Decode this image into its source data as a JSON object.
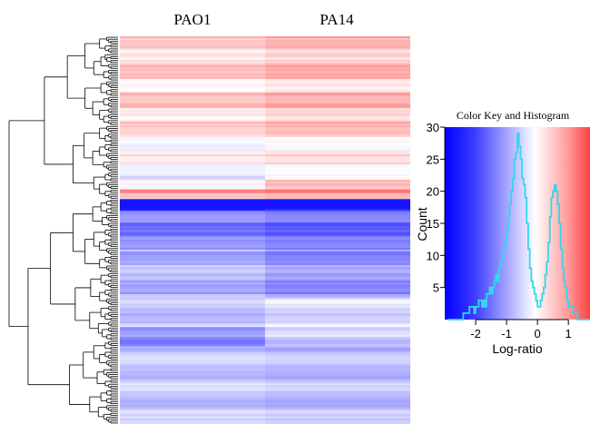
{
  "chart_data": [
    {
      "type": "heatmap",
      "columns": [
        "PAO1",
        "PA14"
      ],
      "row_count": 200,
      "color_scale": {
        "low": "#0000ff",
        "mid": "#ffffff",
        "high": "#ff4040",
        "range": [
          -3,
          1.7
        ]
      },
      "row_blocks": [
        {
          "rows": 52,
          "PAO1": 0.45,
          "PA14": 0.6
        },
        {
          "rows": 20,
          "PAO1": 0.25,
          "PA14": 0.35
        },
        {
          "rows": 7,
          "PAO1": 0.05,
          "PA14": 0.55
        },
        {
          "rows": 5,
          "PAO1": 0.9,
          "PA14": 1.0
        },
        {
          "rows": 6,
          "PAO1": -2.4,
          "PA14": -2.2
        },
        {
          "rows": 20,
          "PAO1": -1.1,
          "PA14": -1.3
        },
        {
          "rows": 25,
          "PAO1": -0.6,
          "PA14": -0.9
        },
        {
          "rows": 15,
          "PAO1": -0.45,
          "PA14": -0.2
        },
        {
          "rows": 10,
          "PAO1": -1.0,
          "PA14": -0.35
        },
        {
          "rows": 40,
          "PAO1": -0.4,
          "PA14": -0.5
        }
      ]
    },
    {
      "type": "histogram",
      "title": "Color Key and Histogram",
      "xlabel": "Log-ratio",
      "ylabel": "Count",
      "xticks": [
        -2,
        -1,
        0,
        1
      ],
      "yticks": [
        5,
        10,
        15,
        20,
        25,
        30
      ],
      "xlim": [
        -3.0,
        1.7
      ],
      "ylim": [
        0,
        30
      ],
      "bin_width": 0.05,
      "bins_start": -2.9,
      "counts": [
        0,
        0,
        0,
        0,
        0,
        0,
        0,
        0,
        0,
        0,
        1,
        1,
        1,
        1,
        2,
        2,
        2,
        1,
        2,
        2,
        3,
        3,
        2,
        3,
        2,
        4,
        4,
        5,
        4,
        5,
        6,
        7,
        6,
        8,
        9,
        10,
        11,
        12,
        14,
        16,
        18,
        20,
        22,
        25,
        26,
        29,
        27,
        25,
        22,
        21,
        19,
        15,
        11,
        8,
        6,
        5,
        4,
        3,
        2,
        2,
        3,
        4,
        5,
        7,
        9,
        12,
        16,
        19,
        20,
        21,
        20,
        18,
        15,
        11,
        8,
        6,
        5,
        3,
        2,
        2,
        2,
        1,
        1,
        1,
        0,
        0,
        0,
        0,
        0,
        0,
        0,
        0,
        0,
        0
      ]
    }
  ]
}
